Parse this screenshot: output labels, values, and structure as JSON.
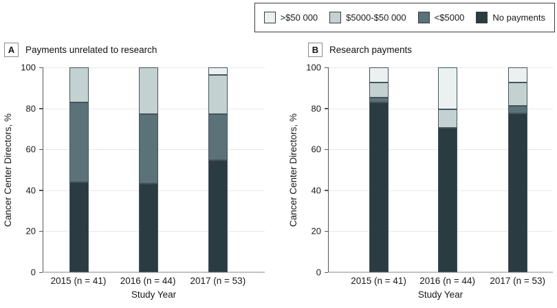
{
  "figure": {
    "background": "#ffffff",
    "text_color": "#15181a"
  },
  "legend": {
    "position": "top-right",
    "items": [
      {
        "label": ">$50 000",
        "color": "#ebf0f0"
      },
      {
        "label": "$5000-$50 000",
        "color": "#c3d1d1"
      },
      {
        "label": "<$5000",
        "color": "#5b7278"
      },
      {
        "label": "No payments",
        "color": "#2a3c42"
      }
    ]
  },
  "chart_data": [
    {
      "type": "bar",
      "stacked": true,
      "panel": "A",
      "title": "Payments unrelated to research",
      "categories": [
        "2015 (n = 41)",
        "2016 (n = 44)",
        "2017 (n = 53)"
      ],
      "series": [
        {
          "name": "No payments",
          "color": "#2a3c42",
          "values": [
            43.9,
            43.2,
            54.7
          ]
        },
        {
          "name": "<$5000",
          "color": "#5b7278",
          "values": [
            39.0,
            34.1,
            22.6
          ]
        },
        {
          "name": "$5000-$50 000",
          "color": "#c3d1d1",
          "values": [
            17.1,
            22.7,
            18.9
          ]
        },
        {
          "name": ">$50 000",
          "color": "#ebf0f0",
          "values": [
            0,
            0,
            3.8
          ]
        }
      ],
      "xlabel": "Study Year",
      "ylabel": "Cancer Center Directors, %",
      "ylim": [
        0,
        100
      ],
      "yticks": [
        0,
        20,
        40,
        60,
        80,
        100
      ],
      "grid": true
    },
    {
      "type": "bar",
      "stacked": true,
      "panel": "B",
      "title": "Research payments",
      "categories": [
        "2015 (n = 41)",
        "2016 (n = 44)",
        "2017 (n = 53)"
      ],
      "series": [
        {
          "name": "No payments",
          "color": "#2a3c42",
          "values": [
            82.9,
            70.5,
            77.4
          ]
        },
        {
          "name": "<$5000",
          "color": "#5b7278",
          "values": [
            2.4,
            0,
            3.8
          ]
        },
        {
          "name": "$5000-$50 000",
          "color": "#c3d1d1",
          "values": [
            7.3,
            9.1,
            11.3
          ]
        },
        {
          "name": ">$50 000",
          "color": "#ebf0f0",
          "values": [
            7.4,
            20.4,
            7.5
          ]
        }
      ],
      "xlabel": "Study Year",
      "ylabel": "Cancer Center Directors, %",
      "ylim": [
        0,
        100
      ],
      "yticks": [
        0,
        20,
        40,
        60,
        80,
        100
      ],
      "grid": true
    }
  ]
}
